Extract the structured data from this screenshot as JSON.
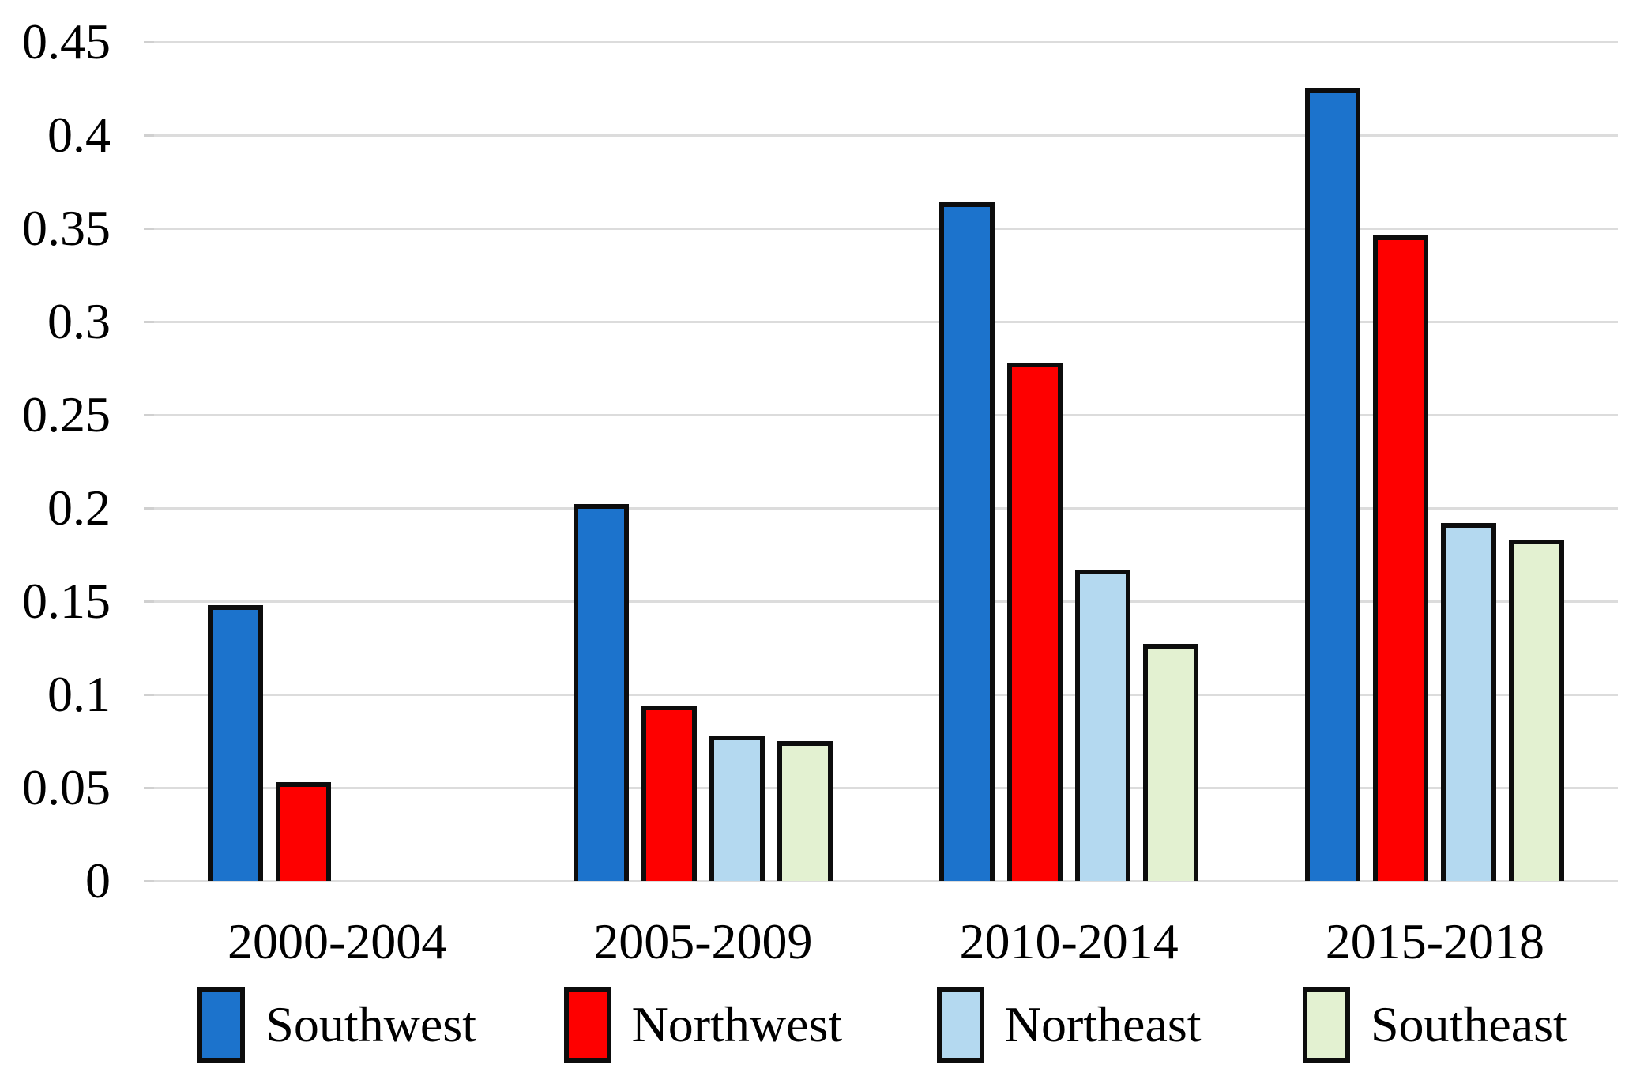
{
  "chart_data": {
    "type": "bar",
    "title": "",
    "xlabel": "",
    "ylabel": "",
    "categories": [
      "2000-2004",
      "2005-2009",
      "2010-2014",
      "2015-2018"
    ],
    "series": [
      {
        "name": "Southwest",
        "color": "#1C73CC",
        "values": [
          0.148,
          0.202,
          0.364,
          0.425
        ]
      },
      {
        "name": "Northwest",
        "color": "#FE0000",
        "values": [
          0.053,
          0.094,
          0.278,
          0.346
        ]
      },
      {
        "name": "Northeast",
        "color": "#B4D9F0",
        "values": [
          null,
          0.078,
          0.167,
          0.192
        ]
      },
      {
        "name": "Southeast",
        "color": "#E3F1D1",
        "values": [
          null,
          0.075,
          0.127,
          0.183
        ]
      }
    ],
    "ylim": [
      0,
      0.45
    ],
    "ytick_step": 0.05,
    "ytick_labels": [
      "0.45",
      "0.4",
      "0.35",
      "0.3",
      "0.25",
      "0.2",
      "0.15",
      "0.1",
      "0.05",
      "0"
    ],
    "grid": true,
    "gridline_color": "#DCDCDC",
    "bar_outline_color": "#0D0D0D",
    "text_color": "#000000",
    "background": "#FFFFFF",
    "legend_position": "bottom"
  }
}
